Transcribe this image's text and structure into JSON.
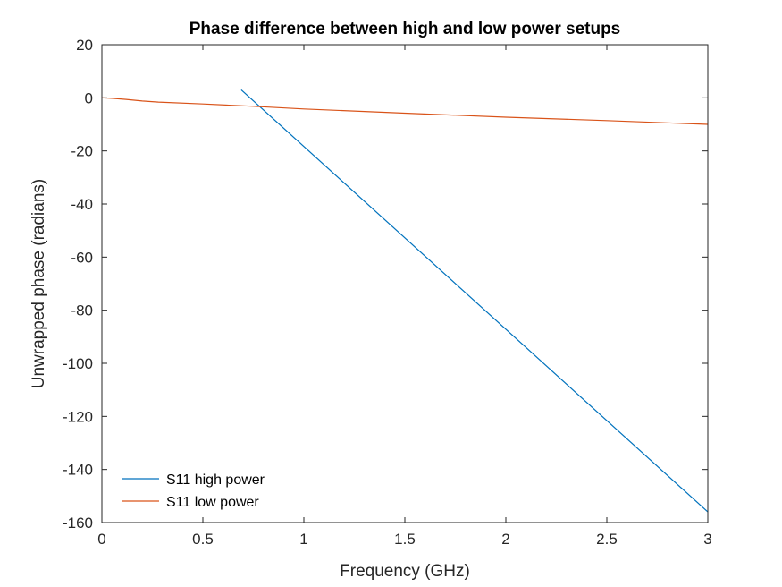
{
  "chart_data": {
    "type": "line",
    "title": "Phase difference between high and low power setups",
    "xlabel": "Frequency (GHz)",
    "ylabel": "Unwrapped phase (radians)",
    "xlim": [
      0,
      3
    ],
    "ylim": [
      -160,
      20
    ],
    "xticks": [
      0,
      0.5,
      1,
      1.5,
      2,
      2.5,
      3
    ],
    "xtick_labels": [
      "0",
      "0.5",
      "1",
      "1.5",
      "2",
      "2.5",
      "3"
    ],
    "yticks": [
      20,
      0,
      -20,
      -40,
      -60,
      -80,
      -100,
      -120,
      -140,
      -160
    ],
    "ytick_labels": [
      "20",
      "0",
      "-20",
      "-40",
      "-60",
      "-80",
      "-100",
      "-120",
      "-140",
      "-160"
    ],
    "grid": false,
    "legend": {
      "placement": "bottom-left"
    },
    "series": [
      {
        "name": "S11 high power",
        "color": "#0072BD",
        "x": [
          0.69,
          3.0
        ],
        "y": [
          3,
          -156
        ]
      },
      {
        "name": "S11 low power",
        "color": "#D95319",
        "x": [
          0,
          0.05,
          0.12,
          0.2,
          0.28,
          0.5,
          0.75,
          1.0,
          1.5,
          2.0,
          2.5,
          3.0
        ],
        "y": [
          0,
          -0.2,
          -0.6,
          -1.2,
          -1.6,
          -2.3,
          -3.2,
          -4.2,
          -5.8,
          -7.3,
          -8.6,
          -10.0
        ]
      }
    ]
  }
}
